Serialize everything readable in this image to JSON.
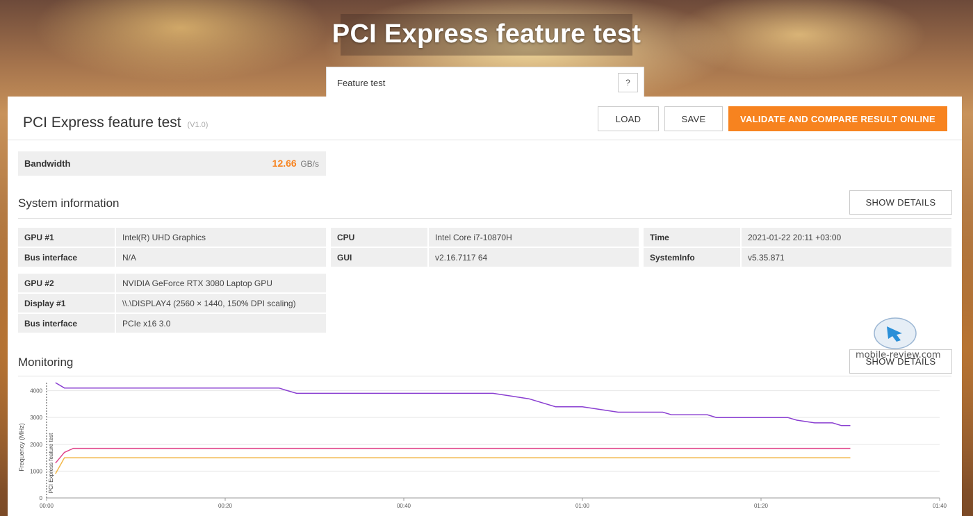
{
  "header": {
    "title": "PCI Express feature test"
  },
  "feature_select": {
    "label": "Feature test",
    "help": "?"
  },
  "result": {
    "title": "PCI Express feature test",
    "version": "(V1.0)"
  },
  "toolbar": {
    "load": "LOAD",
    "save": "SAVE",
    "validate": "VALIDATE AND COMPARE RESULT ONLINE"
  },
  "bandwidth": {
    "label": "Bandwidth",
    "value": "12.66",
    "unit": "GB/s"
  },
  "system_info": {
    "title": "System information",
    "details_button": "SHOW DETAILS",
    "col1": [
      {
        "k": "GPU #1",
        "v": "Intel(R) UHD Graphics"
      },
      {
        "k": "Bus interface",
        "v": "N/A"
      }
    ],
    "col1b": [
      {
        "k": "GPU #2",
        "v": "NVIDIA GeForce RTX 3080 Laptop GPU"
      },
      {
        "k": "Display #1",
        "v": "\\\\.\\DISPLAY4 (2560 × 1440, 150% DPI scaling)"
      },
      {
        "k": "Bus interface",
        "v": "PCIe x16 3.0"
      }
    ],
    "col2": [
      {
        "k": "CPU",
        "v": "Intel Core i7-10870H"
      },
      {
        "k": "GUI",
        "v": "v2.16.7117 64"
      }
    ],
    "col3": [
      {
        "k": "Time",
        "v": "2021-01-22 20:11 +03:00"
      },
      {
        "k": "SystemInfo",
        "v": "v5.35.871"
      }
    ]
  },
  "monitoring": {
    "title": "Monitoring",
    "details_button": "SHOW DETAILS"
  },
  "watermark": {
    "text": "mobile-review.com"
  },
  "chart_data": {
    "type": "line",
    "ylabel": "Frequency (MHz)",
    "marker_label": "PCI Express feature test",
    "x_ticks": [
      "00:00",
      "00:20",
      "00:40",
      "01:00",
      "01:20",
      "01:40"
    ],
    "x_range": [
      0,
      100
    ],
    "y_ticks": [
      0,
      1000,
      2000,
      3000,
      4000
    ],
    "ylim": [
      0,
      4300
    ],
    "grid": true,
    "series": [
      {
        "color": "#8a3fd1",
        "points": [
          [
            1,
            4300
          ],
          [
            2,
            4100
          ],
          [
            26,
            4100
          ],
          [
            27,
            4000
          ],
          [
            28,
            3900
          ],
          [
            50,
            3900
          ],
          [
            52,
            3800
          ],
          [
            54,
            3700
          ],
          [
            57,
            3400
          ],
          [
            60,
            3400
          ],
          [
            62,
            3300
          ],
          [
            64,
            3200
          ],
          [
            69,
            3200
          ],
          [
            70,
            3100
          ],
          [
            74,
            3100
          ],
          [
            75,
            3000
          ],
          [
            83,
            3000
          ],
          [
            84,
            2900
          ],
          [
            86,
            2800
          ],
          [
            88,
            2800
          ],
          [
            89,
            2700
          ],
          [
            90,
            2700
          ]
        ]
      },
      {
        "color": "#e0458a",
        "points": [
          [
            1,
            1300
          ],
          [
            2,
            1700
          ],
          [
            3,
            1850
          ],
          [
            90,
            1850
          ]
        ]
      },
      {
        "color": "#f2b84b",
        "points": [
          [
            1,
            900
          ],
          [
            2,
            1500
          ],
          [
            90,
            1500
          ]
        ]
      }
    ]
  }
}
